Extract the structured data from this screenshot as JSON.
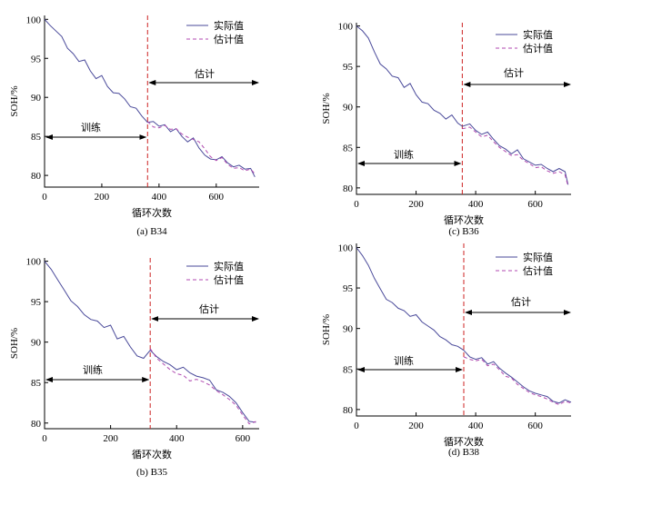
{
  "colors": {
    "actual": "#4a4a9a",
    "estimate": "#b04ab0",
    "split": "#cc2222"
  },
  "chart_data": [
    {
      "type": "line",
      "caption": "(a) B34",
      "xlabel": "循环次数",
      "ylabel": "SOH/%",
      "xlim": [
        0,
        750
      ],
      "ylim": [
        78.5,
        100.5
      ],
      "xticks": [
        0,
        200,
        400,
        600
      ],
      "yticks": [
        80,
        85,
        90,
        95,
        100
      ],
      "split_x": 360,
      "train_label": "训练",
      "estimate_label": "估计",
      "legend": [
        "实际值",
        "估计值"
      ],
      "actual": {
        "x": [
          0,
          20,
          40,
          60,
          80,
          100,
          120,
          140,
          160,
          180,
          200,
          220,
          240,
          260,
          280,
          300,
          320,
          340,
          360,
          380,
          400,
          420,
          440,
          460,
          480,
          500,
          520,
          540,
          560,
          580,
          600,
          620,
          640,
          660,
          680,
          700,
          720,
          735
        ],
        "y": [
          100,
          99.2,
          98.5,
          97.8,
          96.3,
          95.6,
          94.6,
          94.8,
          93.4,
          92.4,
          92.8,
          91.4,
          90.6,
          90.5,
          89.8,
          88.8,
          88.6,
          87.6,
          86.8,
          86.9,
          86.3,
          86.5,
          85.6,
          86.0,
          85.0,
          84.3,
          84.8,
          83.5,
          82.6,
          82.1,
          82.0,
          82.4,
          81.6,
          81.1,
          81.3,
          80.8,
          80.9,
          79.8
        ]
      },
      "estimate": {
        "x": [
          360,
          380,
          400,
          420,
          440,
          460,
          480,
          500,
          520,
          540,
          560,
          580,
          600,
          620,
          640,
          660,
          680,
          700,
          720,
          735
        ],
        "y": [
          86.9,
          86.2,
          86.1,
          86.4,
          85.9,
          86.0,
          85.3,
          84.9,
          84.6,
          84.3,
          83.4,
          82.4,
          81.9,
          82.3,
          81.4,
          80.9,
          81.0,
          80.6,
          80.8,
          80.2
        ]
      }
    },
    {
      "type": "line",
      "caption": "(c) B36",
      "xlabel": "循环次数",
      "ylabel": "SOH/%",
      "xlim": [
        0,
        720
      ],
      "ylim": [
        79.2,
        100.4
      ],
      "xticks": [
        0,
        200,
        400,
        600
      ],
      "yticks": [
        80,
        85,
        90,
        95,
        100
      ],
      "split_x": 355,
      "train_label": "训练",
      "estimate_label": "估计",
      "legend": [
        "实际值",
        "估计值"
      ],
      "actual": {
        "x": [
          0,
          20,
          40,
          60,
          80,
          100,
          120,
          140,
          160,
          180,
          200,
          220,
          240,
          260,
          280,
          300,
          320,
          340,
          355,
          380,
          400,
          420,
          440,
          460,
          480,
          500,
          520,
          540,
          560,
          580,
          600,
          620,
          640,
          660,
          680,
          700,
          710
        ],
        "y": [
          100,
          99.4,
          98.5,
          96.8,
          95.3,
          94.7,
          93.8,
          93.6,
          92.4,
          92.9,
          91.5,
          90.6,
          90.4,
          89.6,
          89.2,
          88.5,
          89.0,
          88.0,
          87.6,
          87.9,
          87.1,
          86.6,
          86.9,
          86.0,
          85.2,
          84.8,
          84.2,
          84.7,
          83.6,
          83.2,
          82.8,
          82.9,
          82.4,
          82.0,
          82.4,
          82.0,
          80.4
        ]
      },
      "estimate": {
        "x": [
          355,
          380,
          400,
          420,
          440,
          460,
          480,
          500,
          520,
          540,
          560,
          580,
          600,
          620,
          640,
          660,
          680,
          700,
          710
        ],
        "y": [
          87.3,
          87.5,
          86.9,
          86.3,
          86.5,
          85.7,
          85.0,
          84.5,
          84.0,
          84.1,
          83.4,
          83.0,
          82.5,
          82.6,
          82.1,
          81.8,
          82.0,
          81.6,
          80.2
        ]
      }
    },
    {
      "type": "line",
      "caption": "(b) B35",
      "xlabel": "循环次数",
      "ylabel": "SOH/%",
      "xlim": [
        0,
        650
      ],
      "ylim": [
        79.3,
        100.4
      ],
      "xticks": [
        0,
        200,
        400,
        600
      ],
      "yticks": [
        80,
        85,
        90,
        95,
        100
      ],
      "split_x": 320,
      "train_label": "训练",
      "estimate_label": "估计",
      "legend": [
        "实际值",
        "估计值"
      ],
      "actual": {
        "x": [
          0,
          20,
          40,
          60,
          80,
          100,
          120,
          140,
          160,
          180,
          200,
          220,
          240,
          260,
          280,
          300,
          320,
          340,
          360,
          380,
          400,
          420,
          440,
          460,
          480,
          500,
          520,
          540,
          560,
          580,
          600,
          620,
          640
        ],
        "y": [
          100,
          99.0,
          97.7,
          96.4,
          95.1,
          94.4,
          93.4,
          92.8,
          92.6,
          91.8,
          92.1,
          90.4,
          90.7,
          89.4,
          88.3,
          88.0,
          89.0,
          88.2,
          87.6,
          87.2,
          86.6,
          86.9,
          86.2,
          85.8,
          85.6,
          85.3,
          84.1,
          83.8,
          83.3,
          82.5,
          81.3,
          80.2,
          80.1
        ]
      },
      "estimate": {
        "x": [
          320,
          340,
          360,
          380,
          400,
          420,
          440,
          460,
          480,
          500,
          520,
          540,
          560,
          580,
          600,
          620,
          640
        ],
        "y": [
          89.2,
          88.0,
          87.3,
          86.6,
          86.1,
          85.9,
          85.2,
          85.4,
          85.1,
          84.7,
          84.0,
          83.5,
          82.9,
          82.2,
          81.0,
          79.9,
          80.2
        ]
      }
    },
    {
      "type": "line",
      "caption": "(d) B38",
      "xlabel": "循环次数",
      "ylabel": "SOH/%",
      "xlim": [
        0,
        720
      ],
      "ylim": [
        79.2,
        100.5
      ],
      "xticks": [
        0,
        200,
        400,
        600
      ],
      "yticks": [
        80,
        85,
        90,
        95,
        100
      ],
      "split_x": 360,
      "train_label": "训练",
      "estimate_label": "估计",
      "legend": [
        "实际值",
        "估计值"
      ],
      "actual": {
        "x": [
          0,
          20,
          40,
          60,
          80,
          100,
          120,
          140,
          160,
          180,
          200,
          220,
          240,
          260,
          280,
          300,
          320,
          340,
          360,
          380,
          400,
          420,
          440,
          460,
          480,
          500,
          520,
          540,
          560,
          580,
          600,
          620,
          640,
          660,
          680,
          700,
          720
        ],
        "y": [
          100,
          99.0,
          97.8,
          96.2,
          94.9,
          93.6,
          93.2,
          92.5,
          92.2,
          91.5,
          91.7,
          90.8,
          90.3,
          89.8,
          89.0,
          88.6,
          88.0,
          87.8,
          87.3,
          86.5,
          86.2,
          86.4,
          85.6,
          85.9,
          85.1,
          84.5,
          84.0,
          83.4,
          82.8,
          82.3,
          82.0,
          81.8,
          81.6,
          81.0,
          80.8,
          81.2,
          80.9
        ]
      },
      "estimate": {
        "x": [
          360,
          380,
          400,
          420,
          440,
          460,
          480,
          500,
          520,
          540,
          560,
          580,
          600,
          620,
          640,
          660,
          680,
          700,
          720
        ],
        "y": [
          86.5,
          86.2,
          86.0,
          86.2,
          85.4,
          85.6,
          84.9,
          84.1,
          83.9,
          83.1,
          82.6,
          82.1,
          81.8,
          81.6,
          81.3,
          80.9,
          80.6,
          81.0,
          80.8
        ]
      }
    }
  ]
}
